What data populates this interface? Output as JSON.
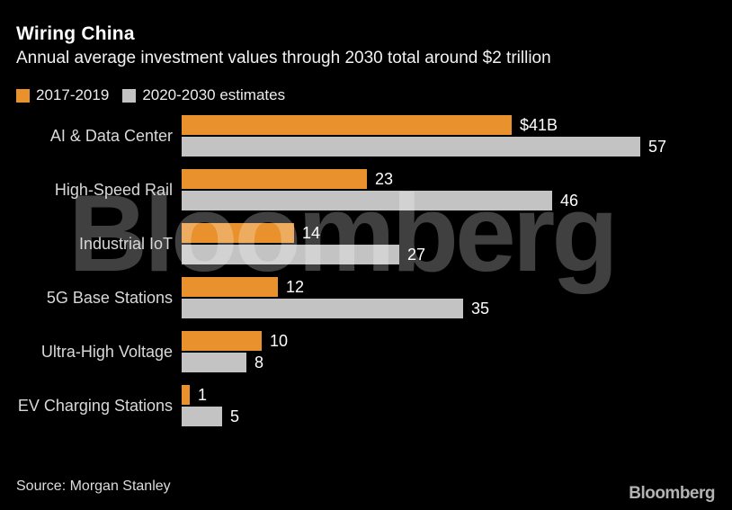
{
  "header": {
    "title": "Wiring China",
    "subtitle": "Annual average investment values through 2030 total around $2 trillion"
  },
  "legend": {
    "items": [
      {
        "label": "2017-2019",
        "color": "#E8912D"
      },
      {
        "label": "2020-2030 estimates",
        "color": "#C3C3C3"
      }
    ]
  },
  "chart_data": {
    "type": "bar",
    "orientation": "horizontal",
    "title": "Wiring China",
    "subtitle": "Annual average investment values through 2030 total around $2 trillion",
    "categories": [
      "AI & Data Center",
      "High-Speed Rail",
      "Industrial IoT",
      "5G Base Stations",
      "Ultra-High Voltage",
      "EV Charging Stations"
    ],
    "series": [
      {
        "name": "2017-2019",
        "color": "#E8912D",
        "values": [
          41,
          23,
          14,
          12,
          10,
          1
        ],
        "value_labels": [
          "$41B",
          "23",
          "14",
          "12",
          "10",
          "1"
        ]
      },
      {
        "name": "2020-2030 estimates",
        "color": "#C3C3C3",
        "values": [
          57,
          46,
          27,
          35,
          8,
          5
        ],
        "value_labels": [
          "57",
          "46",
          "27",
          "35",
          "8",
          "5"
        ]
      }
    ],
    "xlim": [
      0,
      57
    ],
    "grid": false,
    "legend_position": "top-left",
    "value_labels_shown": true
  },
  "watermark": {
    "text": "Bloomberg"
  },
  "footer": {
    "source": "Source: Morgan Stanley",
    "logo": "Bloomberg"
  },
  "colors": {
    "background": "#000000",
    "bar_orange": "#E8912D",
    "bar_gray": "#C3C3C3",
    "text_primary": "#FFFFFF",
    "text_secondary": "#D9D9D9",
    "watermark": "rgba(255,255,255,0.25)"
  }
}
